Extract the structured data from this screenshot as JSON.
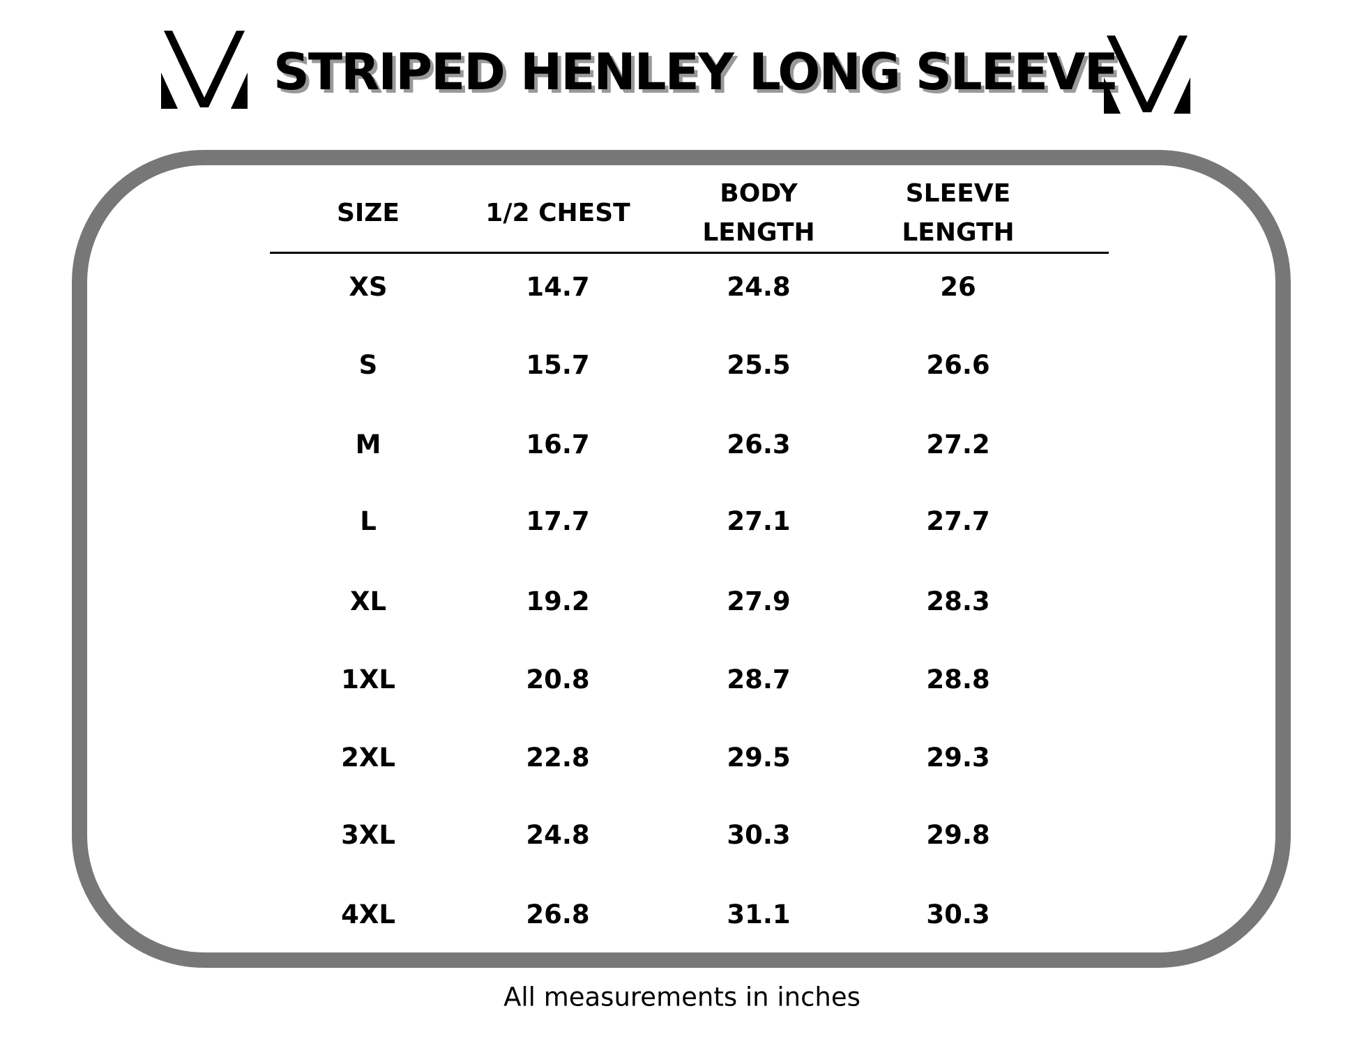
{
  "title": "STRIPED HENLEY LONG SLEEVE",
  "logo_icon": "brand-v-logo",
  "table": {
    "headers": [
      [
        "SIZE"
      ],
      [
        "1/2 CHEST"
      ],
      [
        "BODY",
        "LENGTH"
      ],
      [
        "SLEEVE",
        "LENGTH"
      ]
    ],
    "rows": [
      [
        "XS",
        "14.7",
        "24.8",
        "26"
      ],
      [
        "S",
        "15.7",
        "25.5",
        "26.6"
      ],
      [
        "M",
        "16.7",
        "26.3",
        "27.2"
      ],
      [
        "L",
        "17.7",
        "27.1",
        "27.7"
      ],
      [
        "XL",
        "19.2",
        "27.9",
        "28.3"
      ],
      [
        "1XL",
        "20.8",
        "28.7",
        "28.8"
      ],
      [
        "2XL",
        "22.8",
        "29.5",
        "29.3"
      ],
      [
        "3XL",
        "24.8",
        "30.3",
        "29.8"
      ],
      [
        "4XL",
        "26.8",
        "31.1",
        "30.3"
      ]
    ]
  },
  "footer": "All measurements in inches",
  "colors": {
    "frame": "#777777",
    "text": "#000000",
    "title_shadow": "#999999"
  }
}
